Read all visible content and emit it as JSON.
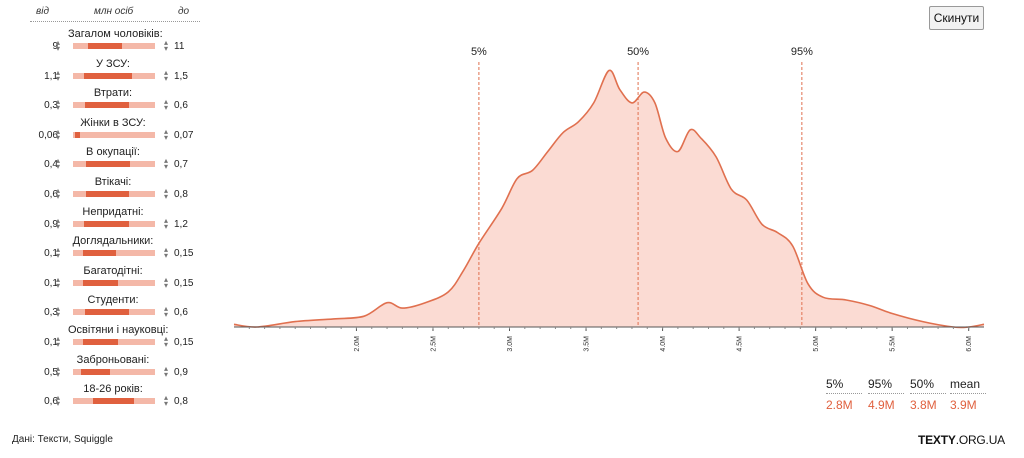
{
  "panel": {
    "from_header": "від",
    "units_header": "млн осіб",
    "to_header": "до",
    "rows": [
      {
        "label": "Загалом чоловіків:",
        "from": "9",
        "to": "11",
        "range": [
          0.18,
          0.6
        ]
      },
      {
        "label": "У ЗСУ:",
        "from": "1,1",
        "to": "1,5",
        "range": [
          0.14,
          0.72
        ]
      },
      {
        "label": "Втрати:",
        "from": "0,3",
        "to": "0,6",
        "range": [
          0.15,
          0.68
        ]
      },
      {
        "label": "Жінки в ЗСУ:",
        "from": "0,06",
        "to": "0,07",
        "range": [
          0.02,
          0.08
        ]
      },
      {
        "label": "В окупації:",
        "from": "0,4",
        "to": "0,7",
        "range": [
          0.16,
          0.7
        ]
      },
      {
        "label": "Втікачі:",
        "from": "0,6",
        "to": "0,8",
        "range": [
          0.16,
          0.68
        ]
      },
      {
        "label": "Непридатні:",
        "from": "0,9",
        "to": "1,2",
        "range": [
          0.14,
          0.68
        ]
      },
      {
        "label": "Доглядальники:",
        "from": "0,1",
        "to": "0,15",
        "range": [
          0.12,
          0.52
        ]
      },
      {
        "label": "Багатодітні:",
        "from": "0,1",
        "to": "0,15",
        "range": [
          0.12,
          0.55
        ]
      },
      {
        "label": "Студенти:",
        "from": "0,3",
        "to": "0,6",
        "range": [
          0.15,
          0.68
        ]
      },
      {
        "label": "Освітяни і науковці:",
        "from": "0,1",
        "to": "0,15",
        "range": [
          0.12,
          0.55
        ]
      },
      {
        "label": "Заброньовані:",
        "from": "0,5",
        "to": "0,9",
        "range": [
          0.1,
          0.45
        ]
      },
      {
        "label": "18-26 років:",
        "from": "0,6",
        "to": "0,8",
        "range": [
          0.24,
          0.75
        ]
      }
    ]
  },
  "reset_label": "Скинути",
  "chart_data": {
    "type": "area",
    "xlim": [
      1.2,
      6.1
    ],
    "ylim": [
      0,
      1
    ],
    "x_ticks": [
      {
        "v": 2.0,
        "label": "2.0M"
      },
      {
        "v": 2.5,
        "label": "2.5M"
      },
      {
        "v": 3.0,
        "label": "3.0M"
      },
      {
        "v": 3.5,
        "label": "3.5M"
      },
      {
        "v": 4.0,
        "label": "4.0M"
      },
      {
        "v": 4.5,
        "label": "4.5M"
      },
      {
        "v": 5.0,
        "label": "5.0M"
      },
      {
        "v": 5.5,
        "label": "5.5M"
      },
      {
        "v": 6.0,
        "label": "6.0M"
      }
    ],
    "percentile_lines": [
      {
        "label": "5%",
        "x": 2.8
      },
      {
        "label": "50%",
        "x": 3.84
      },
      {
        "label": "95%",
        "x": 4.91
      }
    ],
    "density": [
      [
        1.2,
        0.01
      ],
      [
        1.35,
        0.0
      ],
      [
        1.6,
        0.02
      ],
      [
        1.85,
        0.03
      ],
      [
        2.05,
        0.04
      ],
      [
        2.2,
        0.09
      ],
      [
        2.3,
        0.07
      ],
      [
        2.45,
        0.09
      ],
      [
        2.6,
        0.13
      ],
      [
        2.7,
        0.21
      ],
      [
        2.8,
        0.31
      ],
      [
        2.95,
        0.44
      ],
      [
        3.05,
        0.55
      ],
      [
        3.15,
        0.58
      ],
      [
        3.25,
        0.65
      ],
      [
        3.35,
        0.72
      ],
      [
        3.45,
        0.76
      ],
      [
        3.55,
        0.83
      ],
      [
        3.65,
        0.95
      ],
      [
        3.72,
        0.88
      ],
      [
        3.8,
        0.83
      ],
      [
        3.88,
        0.87
      ],
      [
        3.95,
        0.83
      ],
      [
        4.02,
        0.7
      ],
      [
        4.1,
        0.65
      ],
      [
        4.18,
        0.73
      ],
      [
        4.25,
        0.7
      ],
      [
        4.35,
        0.63
      ],
      [
        4.45,
        0.51
      ],
      [
        4.55,
        0.47
      ],
      [
        4.65,
        0.38
      ],
      [
        4.75,
        0.35
      ],
      [
        4.85,
        0.3
      ],
      [
        4.95,
        0.16
      ],
      [
        5.05,
        0.11
      ],
      [
        5.2,
        0.1
      ],
      [
        5.35,
        0.08
      ],
      [
        5.5,
        0.05
      ],
      [
        5.7,
        0.02
      ],
      [
        5.9,
        0.0
      ],
      [
        6.0,
        0.0
      ],
      [
        6.1,
        0.01
      ]
    ]
  },
  "stats": [
    {
      "label": "5%",
      "value": "2.8M"
    },
    {
      "label": "95%",
      "value": "4.9M"
    },
    {
      "label": "50%",
      "value": "3.8M"
    },
    {
      "label": "mean",
      "value": "3.9M"
    }
  ],
  "source": "Дані: Тексти, Squiggle",
  "brand": {
    "bold": "TEXTY",
    "rest": ".ORG.UA"
  }
}
